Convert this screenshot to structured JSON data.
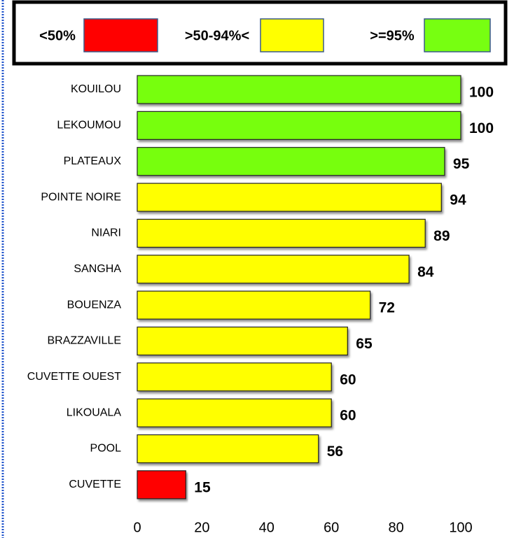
{
  "chart_data": {
    "type": "bar",
    "orientation": "horizontal",
    "legend": [
      {
        "label": "<50%",
        "color": "#ff0000"
      },
      {
        "label": ">50-94%<",
        "color": "#ffff00"
      },
      {
        "label": ">=95%",
        "color": "#77ff11"
      }
    ],
    "categories": [
      "KOUILOU",
      "LEKOUMOU",
      "PLATEAUX",
      "POINTE NOIRE",
      "NIARI",
      "SANGHA",
      "BOUENZA",
      "BRAZZAVILLE",
      "CUVETTE OUEST",
      "LIKOUALA",
      "POOL",
      "CUVETTE"
    ],
    "values": [
      100,
      100,
      95,
      94,
      89,
      84,
      72,
      65,
      60,
      60,
      56,
      15
    ],
    "colors": [
      "#77ff11",
      "#77ff11",
      "#77ff11",
      "#ffff00",
      "#ffff00",
      "#ffff00",
      "#ffff00",
      "#ffff00",
      "#ffff00",
      "#ffff00",
      "#ffff00",
      "#ff0000"
    ],
    "xlim": [
      0,
      100
    ],
    "xticks": [
      0,
      20,
      40,
      60,
      80,
      100
    ]
  }
}
